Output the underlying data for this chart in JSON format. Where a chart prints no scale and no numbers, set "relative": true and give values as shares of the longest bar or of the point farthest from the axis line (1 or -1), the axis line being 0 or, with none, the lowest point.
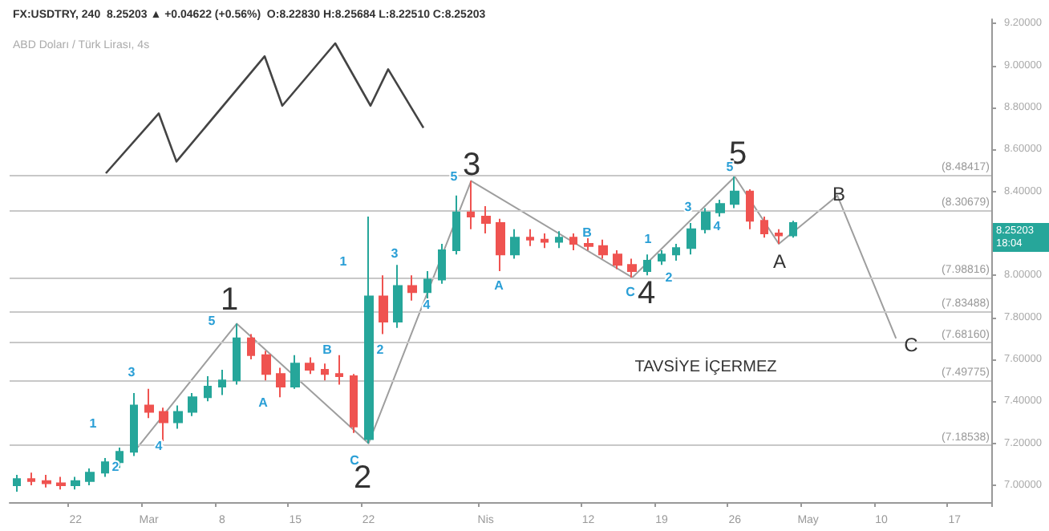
{
  "chart_data": [
    {
      "type": "candlestick",
      "title": "FX:USDTRY, 240  8.25203 ▲ +0.04622 (+0.56%)  O:8.22830 H:8.25684 L:8.22510 C:8.25203",
      "subtitle": "ABD Doları / Türk Lirası, 4s",
      "categories": [
        null,
        null,
        null,
        null,
        "22",
        null,
        null,
        null,
        null,
        "Mar",
        null,
        null,
        null,
        null,
        "8",
        null,
        null,
        null,
        null,
        "15",
        null,
        null,
        null,
        null,
        "22",
        null,
        null,
        null,
        null,
        null,
        null,
        null,
        "Nis",
        null,
        null,
        null,
        null,
        null,
        null,
        "12",
        null,
        null,
        null,
        null,
        "19",
        null,
        null,
        null,
        null,
        "26",
        null,
        null,
        null,
        null,
        "May",
        null,
        null,
        null,
        null,
        "10",
        null,
        null,
        null,
        null,
        "17",
        null,
        null
      ],
      "ylim": [
        6.92,
        9.22
      ],
      "yticks": [
        {
          "value": 7.0,
          "label": "7.00000"
        },
        {
          "value": 7.2,
          "label": "7.20000"
        },
        {
          "value": 7.4,
          "label": "7.40000"
        },
        {
          "value": 7.6,
          "label": "7.60000"
        },
        {
          "value": 7.8,
          "label": "7.80000"
        },
        {
          "value": 8.0,
          "label": "8.00000"
        },
        {
          "value": 8.2,
          "label": null
        },
        {
          "value": 8.4,
          "label": "8.40000"
        },
        {
          "value": 8.6,
          "label": "8.60000"
        },
        {
          "value": 8.8,
          "label": "8.80000"
        },
        {
          "value": 9.0,
          "label": "9.00000"
        },
        {
          "value": 9.2,
          "label": "9.20000"
        }
      ],
      "grid": false,
      "series": [
        {
          "ohlc": [
            [
              7.0,
              7.05,
              6.97,
              7.03
            ],
            [
              7.03,
              7.06,
              7.0,
              7.02
            ],
            [
              7.02,
              7.05,
              6.99,
              7.01
            ],
            [
              7.01,
              7.04,
              6.98,
              7.0
            ],
            [
              7.0,
              7.04,
              6.98,
              7.02
            ],
            [
              7.02,
              7.08,
              7.0,
              7.06
            ],
            [
              7.06,
              7.13,
              7.04,
              7.11
            ],
            [
              7.11,
              7.18,
              7.08,
              7.16
            ],
            [
              7.16,
              7.44,
              7.14,
              7.38
            ],
            [
              7.38,
              7.46,
              7.32,
              7.35
            ],
            [
              7.35,
              7.37,
              7.21,
              7.3
            ],
            [
              7.3,
              7.38,
              7.27,
              7.35
            ],
            [
              7.35,
              7.44,
              7.33,
              7.42
            ],
            [
              7.42,
              7.52,
              7.4,
              7.47
            ],
            [
              7.47,
              7.55,
              7.43,
              7.5
            ],
            [
              7.5,
              7.77,
              7.48,
              7.7
            ],
            [
              7.7,
              7.72,
              7.6,
              7.62
            ],
            [
              7.62,
              7.64,
              7.5,
              7.53
            ],
            [
              7.53,
              7.56,
              7.42,
              7.47
            ],
            [
              7.47,
              7.62,
              7.46,
              7.58
            ],
            [
              7.58,
              7.61,
              7.53,
              7.55
            ],
            [
              7.55,
              7.58,
              7.5,
              7.53
            ],
            [
              7.53,
              7.62,
              7.48,
              7.52
            ],
            [
              7.52,
              7.53,
              7.25,
              7.28
            ],
            [
              7.22,
              8.28,
              7.2,
              7.9
            ],
            [
              7.9,
              8.0,
              7.72,
              7.78
            ],
            [
              7.78,
              8.05,
              7.75,
              7.95
            ],
            [
              7.95,
              8.0,
              7.88,
              7.92
            ],
            [
              7.92,
              8.02,
              7.88,
              7.98
            ],
            [
              7.98,
              8.15,
              7.96,
              8.12
            ],
            [
              8.12,
              8.38,
              8.1,
              8.3
            ],
            [
              8.3,
              8.45,
              8.22,
              8.28
            ],
            [
              8.28,
              8.33,
              8.2,
              8.25
            ],
            [
              8.25,
              8.27,
              8.02,
              8.1
            ],
            [
              8.1,
              8.22,
              8.08,
              8.18
            ],
            [
              8.18,
              8.22,
              8.14,
              8.17
            ],
            [
              8.17,
              8.2,
              8.13,
              8.16
            ],
            [
              8.16,
              8.21,
              8.13,
              8.18
            ],
            [
              8.18,
              8.2,
              8.12,
              8.15
            ],
            [
              8.15,
              8.2,
              8.12,
              8.14
            ],
            [
              8.14,
              8.17,
              8.08,
              8.1
            ],
            [
              8.1,
              8.12,
              8.03,
              8.05
            ],
            [
              8.05,
              8.08,
              7.99,
              8.02
            ],
            [
              8.02,
              8.1,
              8.0,
              8.07
            ],
            [
              8.07,
              8.12,
              8.05,
              8.1
            ],
            [
              8.1,
              8.15,
              8.07,
              8.13
            ],
            [
              8.13,
              8.25,
              8.1,
              8.22
            ],
            [
              8.22,
              8.32,
              8.2,
              8.3
            ],
            [
              8.3,
              8.36,
              8.28,
              8.34
            ],
            [
              8.34,
              8.47,
              8.32,
              8.4
            ],
            [
              8.4,
              8.41,
              8.22,
              8.26
            ],
            [
              8.26,
              8.28,
              8.18,
              8.2
            ],
            [
              8.2,
              8.22,
              8.15,
              8.19
            ],
            [
              8.19,
              8.26,
              8.18,
              8.25
            ],
            null,
            null,
            null,
            null,
            null,
            null,
            null,
            null,
            null,
            null,
            null,
            null,
            null
          ],
          "colors": [
            "#26a69a",
            "#ef5350",
            "#ef5350",
            "#ef5350",
            "#26a69a",
            "#26a69a",
            "#26a69a",
            "#26a69a",
            "#26a69a",
            "#ef5350",
            "#ef5350",
            "#26a69a",
            "#26a69a",
            "#26a69a",
            "#26a69a",
            "#26a69a",
            "#ef5350",
            "#ef5350",
            "#ef5350",
            "#26a69a",
            "#ef5350",
            "#ef5350",
            "#ef5350",
            "#ef5350",
            "#26a69a",
            "#ef5350",
            "#26a69a",
            "#ef5350",
            "#26a69a",
            "#26a69a",
            "#26a69a",
            "#ef5350",
            "#ef5350",
            "#ef5350",
            "#26a69a",
            "#ef5350",
            "#ef5350",
            "#26a69a",
            "#ef5350",
            "#ef5350",
            "#ef5350",
            "#ef5350",
            "#ef5350",
            "#26a69a",
            "#26a69a",
            "#26a69a",
            "#26a69a",
            "#26a69a",
            "#26a69a",
            "#26a69a",
            "#ef5350",
            "#ef5350",
            "#ef5350",
            "#26a69a",
            null,
            null,
            null,
            null,
            null,
            null,
            null,
            null,
            null,
            null,
            null,
            null,
            null
          ]
        },
        {
          "type": "line",
          "color": "#9e9e9e",
          "values": [
            null,
            null,
            null,
            null,
            null,
            null,
            null,
            null,
            7.16,
            null,
            null,
            null,
            null,
            null,
            null,
            7.77,
            null,
            null,
            null,
            null,
            null,
            null,
            null,
            null,
            7.2,
            null,
            null,
            null,
            null,
            null,
            null,
            8.45,
            null,
            null,
            null,
            null,
            null,
            null,
            null,
            null,
            null,
            null,
            7.99,
            null,
            null,
            null,
            null,
            null,
            null,
            8.47,
            null,
            null,
            8.15,
            null,
            null,
            null,
            8.38,
            null,
            null,
            null,
            7.7,
            null,
            null,
            null,
            null,
            null,
            null
          ]
        }
      ],
      "ref_lines": [
        {
          "axis": "y",
          "value": 8.48417,
          "label": "(8.48417)",
          "color": "#c8c8c8"
        },
        {
          "axis": "y",
          "value": 8.30679,
          "label": "(8.30679)",
          "color": "#c8c8c8"
        },
        {
          "axis": "y",
          "value": 7.98816,
          "label": "(7.98816)",
          "color": "#c8c8c8"
        },
        {
          "axis": "y",
          "value": 7.83488,
          "label": "(7.83488)",
          "color": "#c8c8c8"
        },
        {
          "axis": "y",
          "value": 7.6816,
          "label": "(7.68160)",
          "color": "#c8c8c8"
        },
        {
          "axis": "y",
          "value": 7.49775,
          "label": "(7.49775)",
          "color": "#c8c8c8"
        },
        {
          "axis": "y",
          "value": 7.18538,
          "label": "(7.18538)",
          "color": "#c8c8c8"
        }
      ],
      "annotations": [
        "1",
        "2",
        "3",
        "4",
        "5",
        "A",
        "B",
        "C",
        "1",
        "2",
        "3",
        "4",
        "5",
        "A",
        "B",
        "C",
        "1",
        "2",
        "3",
        "4",
        "5",
        "A",
        "B",
        "C",
        "1",
        "2",
        "3",
        "4",
        "5",
        "8.25203\n18:04",
        "TAVSİYE İÇERMEZ"
      ]
    },
    {
      "type": "line",
      "relative": true,
      "categories": [
        null,
        null,
        null,
        null,
        null,
        null,
        null,
        null,
        null,
        null,
        null,
        null,
        null,
        null,
        null,
        null,
        null,
        null,
        null
      ],
      "series": [
        {
          "color": "#444444",
          "values": [
            0,
            null,
            null,
            0.46,
            0.09,
            null,
            null,
            null,
            null,
            0.9,
            0.52,
            null,
            null,
            1,
            null,
            0.52,
            0.8,
            null,
            0.35
          ]
        }
      ]
    }
  ]
}
